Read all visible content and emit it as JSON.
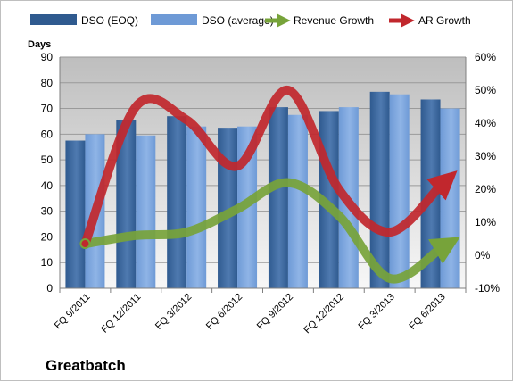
{
  "company_label": "Greatbatch",
  "colors": {
    "dso_eoq": "#2f5a8f",
    "dso_eoq_light": "#4f7ab0",
    "dso_average": "#6e9ad6",
    "dso_average_light": "#8fb4e6",
    "revenue_growth": "#77a33a",
    "ar_growth": "#c1272d",
    "gridline": "#9a9a9a",
    "plot_bg_top": "#bebebe",
    "plot_bg_bottom": "#f7f7f7"
  },
  "chart_data": {
    "type": "bar",
    "categories": [
      "FQ 9/2011",
      "FQ 12/2011",
      "FQ 3/2012",
      "FQ 6/2012",
      "FQ 9/2012",
      "FQ 12/2012",
      "FQ 3/2013",
      "FQ 6/2013"
    ],
    "series": [
      {
        "name": "DSO (EOQ)",
        "type": "bar",
        "axis": "left",
        "values": [
          57.5,
          65.5,
          67,
          62.5,
          70.5,
          69,
          76.5,
          73.5
        ]
      },
      {
        "name": "DSO (average)",
        "type": "bar",
        "axis": "left",
        "values": [
          60,
          59.5,
          63,
          63,
          67.5,
          70.5,
          75.5,
          70
        ]
      },
      {
        "name": "Revenue Growth",
        "type": "line",
        "axis": "right",
        "values": [
          3.5,
          6,
          7,
          14,
          22,
          12,
          -7,
          2
        ]
      },
      {
        "name": "AR Growth",
        "type": "line",
        "axis": "right",
        "values": [
          3.5,
          45,
          41,
          27,
          50,
          20,
          7,
          21
        ]
      }
    ],
    "ylabel": "Days",
    "ylim": [
      0,
      90
    ],
    "yticks": [
      "0",
      "10",
      "20",
      "30",
      "40",
      "50",
      "60",
      "70",
      "80",
      "90"
    ],
    "y2lim": [
      -10,
      60
    ],
    "y2ticks": [
      "-10%",
      "0%",
      "10%",
      "20%",
      "30%",
      "40%",
      "50%",
      "60%"
    ],
    "grid": true,
    "legend_position": "top"
  }
}
